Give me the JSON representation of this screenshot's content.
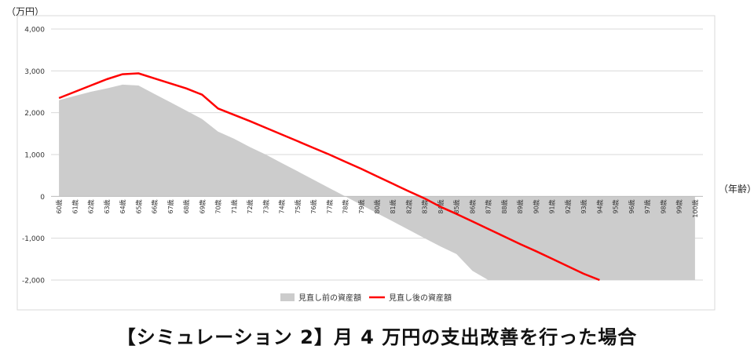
{
  "caption": "【シミュレーション 2】月 4 万円の支出改善を行った場合",
  "chart_data": {
    "type": "area",
    "ylabel": "（万円）",
    "xlabel": "（年齢）",
    "ylim": [
      -2000,
      4000
    ],
    "yticks": [
      4000,
      3000,
      2000,
      1000,
      0,
      -1000,
      -2000
    ],
    "ytick_labels": [
      "4,000",
      "3,000",
      "2,000",
      "1,000",
      "0",
      "-1,000",
      "-2,000"
    ],
    "categories": [
      "60歳",
      "61歳",
      "62歳",
      "63歳",
      "64歳",
      "65歳",
      "66歳",
      "67歳",
      "68歳",
      "69歳",
      "70歳",
      "71歳",
      "72歳",
      "73歳",
      "74歳",
      "75歳",
      "76歳",
      "77歳",
      "78歳",
      "79歳",
      "80歳",
      "81歳",
      "82歳",
      "83歳",
      "84歳",
      "85歳",
      "86歳",
      "87歳",
      "88歳",
      "89歳",
      "90歳",
      "91歳",
      "92歳",
      "93歳",
      "94歳",
      "95歳",
      "96歳",
      "97歳",
      "98歳",
      "99歳",
      "100歳"
    ],
    "grid": true,
    "legend_position": "bottom",
    "colors": {
      "before": "#cccccc",
      "after": "#ff0000",
      "grid": "#d9d9d9"
    },
    "series": [
      {
        "name": "見直し前の資産額",
        "style": "area",
        "values": [
          2300,
          2400,
          2500,
          2580,
          2670,
          2650,
          2450,
          2250,
          2050,
          1850,
          1550,
          1380,
          1180,
          1000,
          800,
          600,
          400,
          200,
          0,
          -200,
          -400,
          -600,
          -800,
          -1000,
          -1200,
          -1380,
          -1780,
          -2000,
          -2000,
          -2000,
          -2000,
          -2000,
          -2000,
          -2000,
          -2000,
          -2000,
          -2000,
          -2000,
          -2000,
          -2000,
          -2000
        ]
      },
      {
        "name": "見直し後の資産額",
        "style": "line",
        "values": [
          2350,
          2500,
          2650,
          2800,
          2920,
          2940,
          2820,
          2700,
          2580,
          2430,
          2100,
          1950,
          1800,
          1640,
          1480,
          1320,
          1160,
          1000,
          830,
          660,
          480,
          300,
          120,
          -50,
          -250,
          -420,
          -600,
          -780,
          -960,
          -1140,
          -1310,
          -1490,
          -1670,
          -1850,
          -2000,
          null,
          null,
          null,
          null,
          null,
          null
        ]
      }
    ]
  }
}
